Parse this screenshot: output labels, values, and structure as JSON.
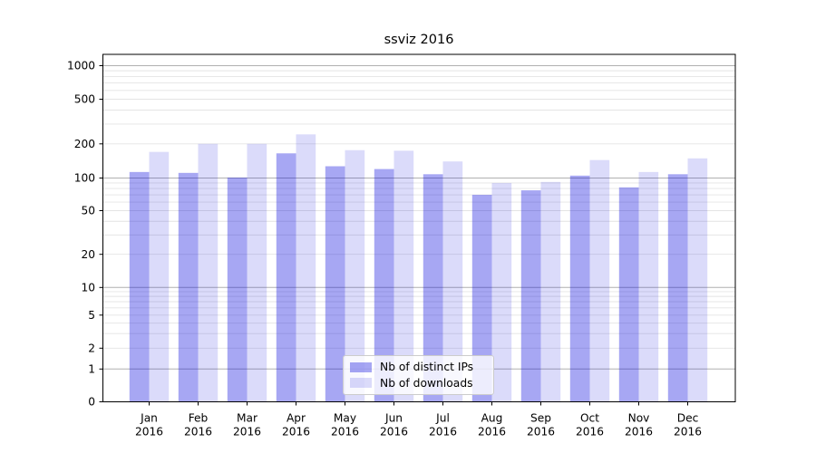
{
  "title": "ssviz 2016",
  "legend": {
    "items": [
      {
        "label": "Nb of distinct IPs",
        "swatch_color": "rgba(0,0,220,0.345)"
      },
      {
        "label": "Nb of downloads",
        "swatch_color": "rgba(0,0,220,0.14)"
      }
    ],
    "position": "lower center"
  },
  "colors": {
    "bar_distinct_ips": "rgba(0,0,220,0.345)",
    "bar_downloads": "rgba(0,0,220,0.14)",
    "grid_major": "#b0b0b0",
    "grid_minor": "#e4e4e4",
    "axis": "#000000",
    "text": "#000000",
    "background": "#ffffff"
  },
  "chart_data": {
    "type": "bar",
    "title": "ssviz 2016",
    "xlabel": "",
    "ylabel": "",
    "yscale": "log-with-zero",
    "ylim": [
      0,
      1250
    ],
    "grid": "both",
    "y_ticks": [
      0,
      1,
      2,
      5,
      10,
      20,
      50,
      100,
      200,
      500,
      1000
    ],
    "y_minor_gridlines": [
      2,
      3,
      4,
      5,
      6,
      7,
      8,
      9,
      20,
      30,
      40,
      50,
      60,
      70,
      80,
      90,
      200,
      300,
      400,
      500,
      600,
      700,
      800,
      900
    ],
    "y_major_gridlines": [
      1,
      10,
      100,
      1000
    ],
    "categories": [
      "Jan 2016",
      "Feb 2016",
      "Mar 2016",
      "Apr 2016",
      "May 2016",
      "Jun 2016",
      "Jul 2016",
      "Aug 2016",
      "Sep 2016",
      "Oct 2016",
      "Nov 2016",
      "Dec 2016"
    ],
    "series": [
      {
        "name": "Nb of distinct IPs",
        "color": "rgba(0,0,220,0.345)",
        "values": [
          113,
          111,
          101,
          165,
          127,
          120,
          108,
          70,
          77,
          105,
          82,
          108
        ]
      },
      {
        "name": "Nb of downloads",
        "color": "rgba(0,0,220,0.14)",
        "values": [
          170,
          200,
          200,
          243,
          176,
          174,
          140,
          90,
          92,
          144,
          113,
          149
        ]
      }
    ]
  }
}
